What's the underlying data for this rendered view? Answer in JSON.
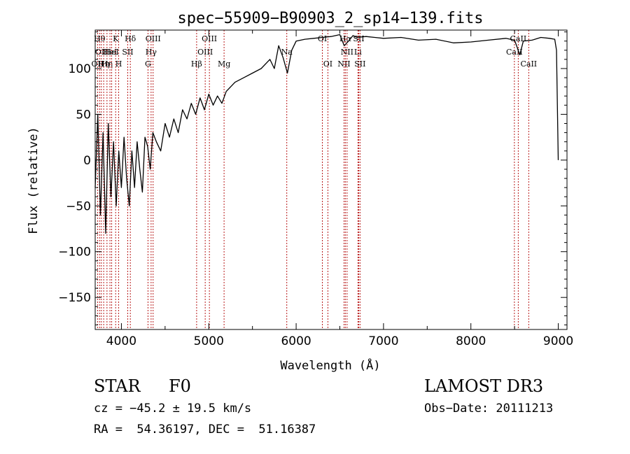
{
  "chart_data": {
    "type": "line",
    "title": "spec−55909−B90903_2_sp14−139.fits",
    "xlabel": "Wavelength (Å)",
    "ylabel": "Flux (relative)",
    "xlim": [
      3700,
      9100
    ],
    "ylim": [
      -185,
      142
    ],
    "xticks": [
      4000,
      5000,
      6000,
      7000,
      8000,
      9000
    ],
    "yticks": [
      -150,
      -100,
      -50,
      0,
      50,
      100
    ],
    "ytick_labels": [
      "−150",
      "−100",
      "−50",
      "0",
      "50",
      "100"
    ],
    "series": [
      {
        "name": "flux",
        "x": [
          3700,
          3730,
          3760,
          3790,
          3820,
          3850,
          3880,
          3910,
          3940,
          3970,
          4000,
          4030,
          4060,
          4090,
          4120,
          4150,
          4180,
          4210,
          4240,
          4270,
          4300,
          4330,
          4360,
          4400,
          4450,
          4500,
          4550,
          4600,
          4650,
          4700,
          4750,
          4800,
          4850,
          4900,
          4950,
          5000,
          5050,
          5100,
          5150,
          5200,
          5300,
          5400,
          5500,
          5600,
          5700,
          5750,
          5800,
          5850,
          5900,
          5950,
          6000,
          6100,
          6200,
          6300,
          6400,
          6500,
          6550,
          6600,
          6650,
          6700,
          6800,
          6900,
          7000,
          7200,
          7400,
          7600,
          7800,
          8000,
          8200,
          8400,
          8500,
          8560,
          8600,
          8700,
          8800,
          8900,
          8960,
          8980,
          9000
        ],
        "y": [
          -30,
          50,
          -60,
          30,
          -80,
          40,
          -40,
          20,
          -50,
          10,
          -30,
          25,
          -20,
          -50,
          10,
          -30,
          20,
          -10,
          -35,
          25,
          15,
          -10,
          30,
          20,
          10,
          40,
          25,
          45,
          30,
          55,
          45,
          62,
          50,
          68,
          55,
          72,
          60,
          70,
          62,
          75,
          85,
          90,
          95,
          100,
          110,
          100,
          125,
          112,
          95,
          120,
          130,
          132,
          133,
          134,
          135,
          137,
          125,
          130,
          136,
          134,
          135,
          134,
          133,
          134,
          131,
          132,
          128,
          129,
          131,
          133,
          131,
          115,
          130,
          131,
          134,
          133,
          132,
          120,
          0
        ]
      }
    ],
    "line_markers": [
      {
        "x": 3727,
        "label": "OII",
        "row": 3
      },
      {
        "x": 3750,
        "label": "Hθ",
        "row": 1
      },
      {
        "x": 3770,
        "label": "OII",
        "row": 2
      },
      {
        "x": 3797,
        "label": "Hη",
        "row": 3
      },
      {
        "x": 3835,
        "label": "Hη",
        "row": 3
      },
      {
        "x": 3869,
        "label": "HeI",
        "row": 2
      },
      {
        "x": 3889,
        "label": "HeI",
        "row": 2
      },
      {
        "x": 3934,
        "label": "K",
        "row": 1
      },
      {
        "x": 3969,
        "label": "H",
        "row": 3
      },
      {
        "x": 4072,
        "label": "SII",
        "row": 2
      },
      {
        "x": 4102,
        "label": "Hδ",
        "row": 1
      },
      {
        "x": 4304,
        "label": "G",
        "row": 3
      },
      {
        "x": 4340,
        "label": "Hγ",
        "row": 2
      },
      {
        "x": 4363,
        "label": "OIII",
        "row": 1
      },
      {
        "x": 4861,
        "label": "Hβ",
        "row": 3
      },
      {
        "x": 4959,
        "label": "OIII",
        "row": 2
      },
      {
        "x": 5007,
        "label": "OIII",
        "row": 1
      },
      {
        "x": 5175,
        "label": "Mg",
        "row": 3
      },
      {
        "x": 5893,
        "label": "Na",
        "row": 2
      },
      {
        "x": 6300,
        "label": "OI",
        "row": 1
      },
      {
        "x": 6363,
        "label": "OI",
        "row": 3
      },
      {
        "x": 6548,
        "label": "NII",
        "row": 3
      },
      {
        "x": 6563,
        "label": "Hα",
        "row": 1
      },
      {
        "x": 6583,
        "label": "NII",
        "row": 2
      },
      {
        "x": 6707,
        "label": "Li",
        "row": 2
      },
      {
        "x": 6716,
        "label": "SII",
        "row": 1
      },
      {
        "x": 6731,
        "label": "SII",
        "row": 3
      },
      {
        "x": 8498,
        "label": "CaII",
        "row": 2
      },
      {
        "x": 8542,
        "label": "CaII",
        "row": 1
      },
      {
        "x": 8662,
        "label": "CaII",
        "row": 3
      }
    ]
  },
  "info": {
    "class": "STAR",
    "subclass": "F0",
    "survey": "LAMOST DR3",
    "cz": "cz = −45.2 ± 19.5 km/s",
    "obs_date": "Obs−Date: 20111213",
    "coords": "RA =  54.36197, DEC =  51.16387"
  }
}
